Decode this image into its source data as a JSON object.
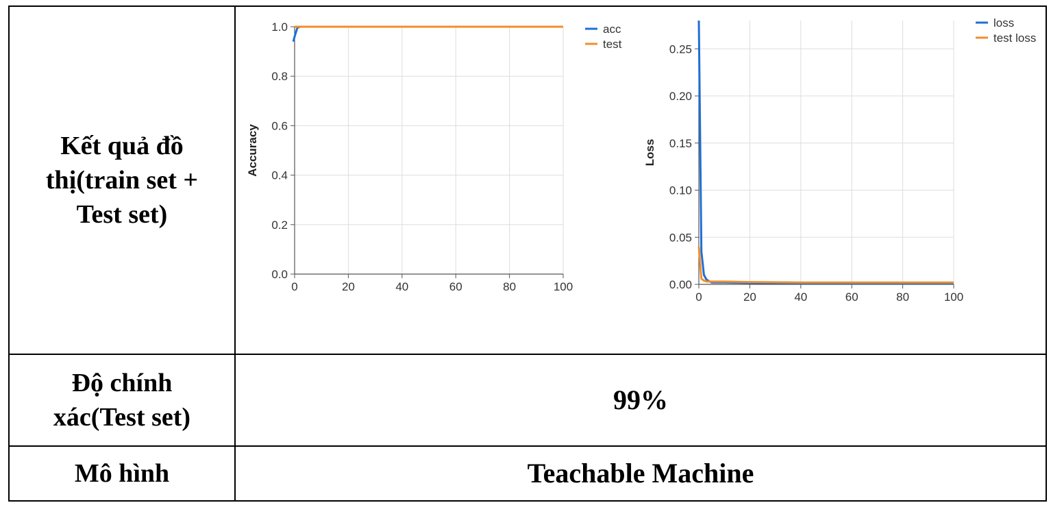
{
  "table": {
    "rows": [
      {
        "label": "Kết quả đồ thị(train set + Test set)"
      },
      {
        "label": "Độ chính xác(Test set)",
        "value": "99%"
      },
      {
        "label": "Mô hình",
        "value": "Teachable Machine"
      }
    ]
  },
  "chart_data": [
    {
      "type": "line",
      "title": "",
      "xlabel": "",
      "ylabel": "Accuracy",
      "xlim": [
        0,
        100
      ],
      "ylim": [
        0,
        1
      ],
      "xticks": [
        "0",
        "20",
        "40",
        "60",
        "80",
        "100"
      ],
      "yticks": [
        "0.0",
        "0.2",
        "0.4",
        "0.6",
        "0.8",
        "1.0"
      ],
      "grid": true,
      "legend": "top-right",
      "series": [
        {
          "name": "acc",
          "color": "#1f6fd6",
          "x": [
            -0.5,
            0,
            1,
            2,
            5,
            10,
            20,
            40,
            60,
            80,
            100
          ],
          "y": [
            0.94,
            0.96,
            0.995,
            1.0,
            1.0,
            1.0,
            1.0,
            1.0,
            1.0,
            1.0,
            1.0
          ]
        },
        {
          "name": "test",
          "color": "#f28e2b",
          "x": [
            0,
            1,
            2,
            5,
            10,
            20,
            40,
            60,
            80,
            100
          ],
          "y": [
            1.0,
            1.0,
            1.0,
            1.0,
            1.0,
            1.0,
            1.0,
            1.0,
            1.0,
            1.0
          ]
        }
      ]
    },
    {
      "type": "line",
      "title": "",
      "xlabel": "",
      "ylabel": "Loss",
      "xlim": [
        0,
        100
      ],
      "ylim": [
        0,
        0.28
      ],
      "xticks": [
        "0",
        "20",
        "40",
        "60",
        "80",
        "100"
      ],
      "yticks": [
        "0.00",
        "0.05",
        "0.10",
        "0.15",
        "0.20",
        "0.25"
      ],
      "grid": true,
      "legend": "top-right",
      "series": [
        {
          "name": "loss",
          "color": "#1f6fd6",
          "x": [
            0,
            1,
            2,
            3,
            5,
            10,
            20,
            40,
            60,
            80,
            100
          ],
          "y": [
            0.28,
            0.035,
            0.01,
            0.005,
            0.002,
            0.002,
            0.0015,
            0.001,
            0.001,
            0.001,
            0.001
          ]
        },
        {
          "name": "test loss",
          "color": "#f28e2b",
          "x": [
            0,
            1,
            2,
            3,
            5,
            10,
            20,
            40,
            60,
            80,
            100
          ],
          "y": [
            0.04,
            0.006,
            0.004,
            0.003,
            0.003,
            0.003,
            0.0025,
            0.002,
            0.002,
            0.002,
            0.002
          ]
        }
      ]
    }
  ]
}
